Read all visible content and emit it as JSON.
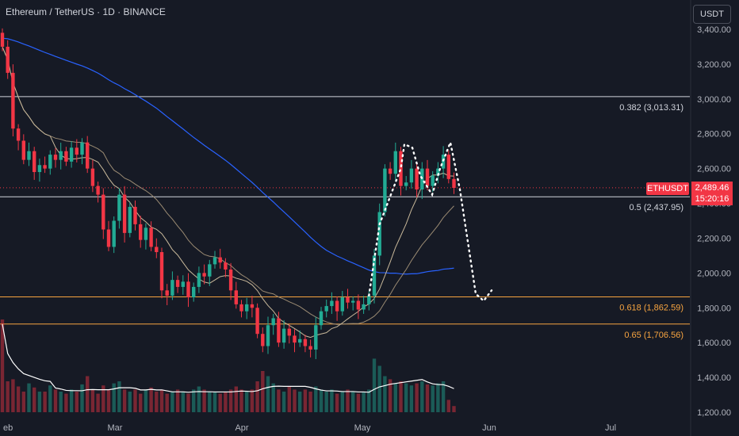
{
  "header": {
    "title": "Ethereum / TetherUS · 1D · BINANCE",
    "currency": "USDT"
  },
  "price_tag": {
    "symbol": "ETHUSDT",
    "price": "2,489.46",
    "countdown": "15:20:16"
  },
  "colors": {
    "background": "#161a25",
    "up": "#22ab94",
    "down": "#f23645",
    "ma_fast": "#c8b89a",
    "ma_slow": "#9b8b73",
    "ma_long": "#2962ff",
    "fib_white": "#d1d4dc",
    "fib_orange": "#f7a440",
    "volume_ma": "#ffffff"
  },
  "chart_data": {
    "type": "candlestick",
    "x_axis": {
      "ticks": [
        "eb",
        "Mar",
        "Apr",
        "May",
        "Jun",
        "Jul"
      ]
    },
    "y_axis": {
      "range": [
        1160,
        3480
      ],
      "ticks": [
        "1,200.00",
        "1,400.00",
        "1,600.00",
        "1,800.00",
        "2,000.00",
        "2,200.00",
        "2,400.00",
        "2,600.00",
        "2,800.00",
        "3,000.00",
        "3,200.00",
        "3,400.00"
      ],
      "tick_values": [
        1200,
        1400,
        1600,
        1800,
        2000,
        2200,
        2400,
        2600,
        2800,
        3000,
        3200,
        3400
      ]
    },
    "fib_levels": [
      {
        "label": "0.382 (3,013.31)",
        "value": 3013.31
      },
      {
        "label": "0.5 (2,437.95)",
        "value": 2437.95
      },
      {
        "label": "0.618 (1,862.59)",
        "value": 1862.59
      },
      {
        "label": "0.65 (1,706.56)",
        "value": 1706.56
      }
    ],
    "current_price": 2489.46,
    "closes": [
      3300,
      3150,
      2830,
      2760,
      2650,
      2700,
      2580,
      2620,
      2600,
      2680,
      2650,
      2700,
      2640,
      2720,
      2680,
      2750,
      2600,
      2500,
      2450,
      2250,
      2150,
      2300,
      2450,
      2230,
      2380,
      2280,
      2190,
      2260,
      2150,
      2120,
      1900,
      1870,
      1960,
      1920,
      1950,
      1860,
      1920,
      2000,
      1980,
      2050,
      2090,
      2060,
      2020,
      1900,
      1820,
      1780,
      1820,
      1800,
      1650,
      1580,
      1700,
      1740,
      1600,
      1680,
      1640,
      1600,
      1620,
      1580,
      1560,
      1700,
      1780,
      1810,
      1840,
      1780,
      1860,
      1830,
      1840,
      1790,
      1820,
      1870,
      2100,
      2350,
      2600,
      2570,
      2700,
      2500,
      2520,
      2600,
      2480,
      2600,
      2500,
      2560,
      2600,
      2680,
      2540,
      2489
    ],
    "volumes": [
      0.9,
      0.3,
      0.32,
      0.25,
      0.2,
      0.28,
      0.24,
      0.2,
      0.2,
      0.26,
      0.22,
      0.2,
      0.18,
      0.22,
      0.2,
      0.27,
      0.35,
      0.22,
      0.18,
      0.26,
      0.22,
      0.28,
      0.3,
      0.22,
      0.2,
      0.22,
      0.18,
      0.22,
      0.24,
      0.2,
      0.22,
      0.18,
      0.2,
      0.22,
      0.2,
      0.18,
      0.22,
      0.25,
      0.22,
      0.2,
      0.2,
      0.18,
      0.2,
      0.22,
      0.25,
      0.22,
      0.2,
      0.22,
      0.3,
      0.4,
      0.35,
      0.28,
      0.22,
      0.2,
      0.25,
      0.22,
      0.2,
      0.22,
      0.2,
      0.25,
      0.22,
      0.2,
      0.22,
      0.18,
      0.2,
      0.22,
      0.2,
      0.18,
      0.2,
      0.22,
      0.52,
      0.45,
      0.35,
      0.32,
      0.28,
      0.3,
      0.28,
      0.26,
      0.28,
      0.3,
      0.27,
      0.26,
      0.28,
      0.3,
      0.12,
      0.06
    ]
  }
}
